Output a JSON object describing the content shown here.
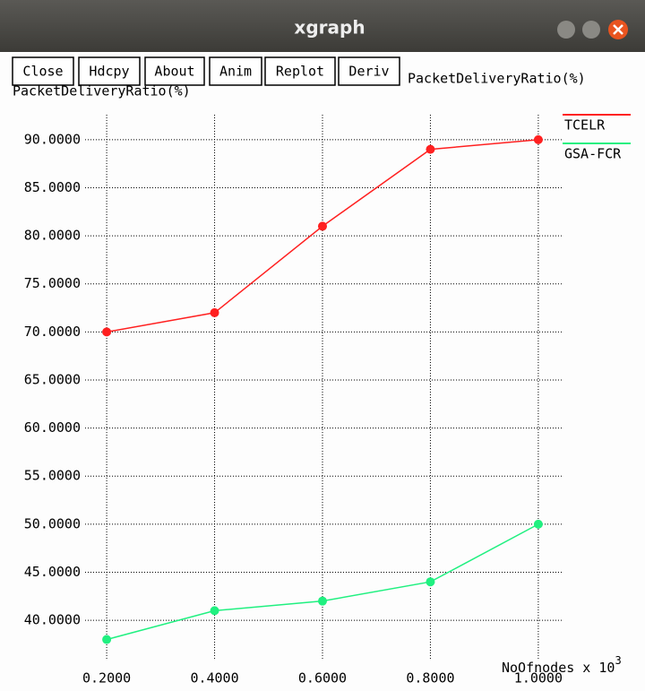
{
  "window": {
    "title": "xgraph",
    "buttons": [
      "Close",
      "Hdcpy",
      "About",
      "Anim",
      "Replot",
      "Deriv"
    ]
  },
  "chart_data": {
    "type": "line",
    "title": "PacketDeliveryRatio(%)",
    "y_label": "PacketDeliveryRatio(%)",
    "x_label": "NoOfnodes x 10",
    "x_label_exponent": "3",
    "x": [
      0.2,
      0.4,
      0.6,
      0.8,
      1.0
    ],
    "series": [
      {
        "name": "TCELR",
        "color": "#ff2020",
        "values": [
          70,
          72,
          81,
          89,
          90
        ]
      },
      {
        "name": "GSA-FCR",
        "color": "#20f080",
        "values": [
          38,
          41,
          42,
          44,
          50
        ]
      }
    ],
    "xlim": [
      0.16,
      1.045
    ],
    "ylim": [
      36,
      92.6
    ],
    "xticks": [
      {
        "value": 0.2,
        "label": "0.2000"
      },
      {
        "value": 0.4,
        "label": "0.4000"
      },
      {
        "value": 0.6,
        "label": "0.6000"
      },
      {
        "value": 0.8,
        "label": "0.8000"
      },
      {
        "value": 1.0,
        "label": "1.0000"
      }
    ],
    "yticks": [
      {
        "value": 40,
        "label": "40.0000"
      },
      {
        "value": 45,
        "label": "45.0000"
      },
      {
        "value": 50,
        "label": "50.0000"
      },
      {
        "value": 55,
        "label": "55.0000"
      },
      {
        "value": 60,
        "label": "60.0000"
      },
      {
        "value": 65,
        "label": "65.0000"
      },
      {
        "value": 70,
        "label": "70.0000"
      },
      {
        "value": 75,
        "label": "75.0000"
      },
      {
        "value": 80,
        "label": "80.0000"
      },
      {
        "value": 85,
        "label": "85.0000"
      },
      {
        "value": 90,
        "label": "90.0000"
      }
    ],
    "grid": true,
    "legend": "top-right"
  }
}
